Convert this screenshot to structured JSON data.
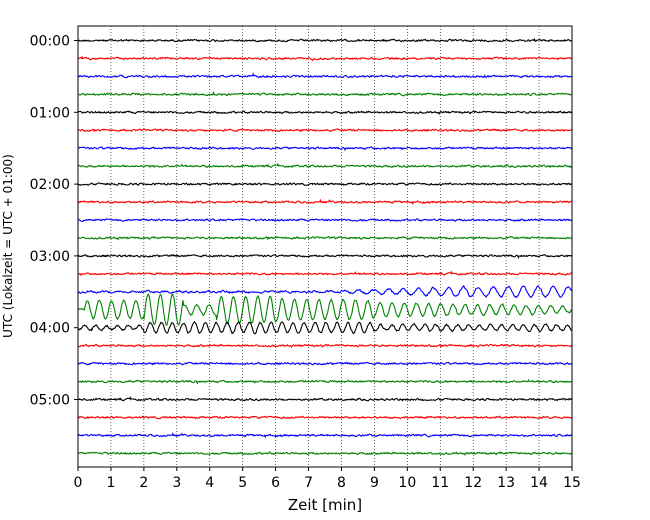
{
  "chart_data": {
    "type": "line",
    "title": "",
    "xlabel": "Zeit  [min]",
    "ylabel": "UTC (Lokalzeit = UTC + 01:00)",
    "xlim": [
      0,
      15
    ],
    "x_ticks": [
      "0",
      "1",
      "2",
      "3",
      "4",
      "5",
      "6",
      "7",
      "8",
      "9",
      "10",
      "11",
      "12",
      "13",
      "14",
      "15"
    ],
    "y_ticks": [
      "00:00",
      "01:00",
      "02:00",
      "03:00",
      "04:00",
      "05:00"
    ],
    "trace_interval_minutes": 15,
    "trace_count": 24,
    "trace_colors": [
      "#000000",
      "#ff0000",
      "#0000ff",
      "#008000"
    ],
    "vertical_grid": true,
    "grid_style": "dotted",
    "quake_event": {
      "description_note": "large oscillations",
      "trace_indices": [
        14,
        15,
        16
      ],
      "approx_time_utc": "03:30"
    }
  }
}
